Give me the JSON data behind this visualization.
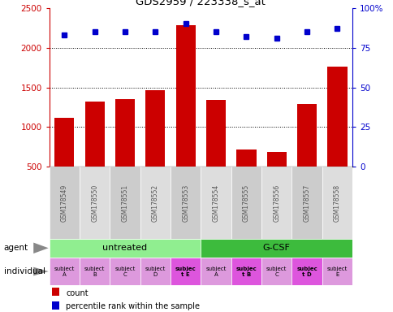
{
  "title": "GDS2959 / 223338_s_at",
  "samples": [
    "GSM178549",
    "GSM178550",
    "GSM178551",
    "GSM178552",
    "GSM178553",
    "GSM178554",
    "GSM178555",
    "GSM178556",
    "GSM178557",
    "GSM178558"
  ],
  "counts": [
    1120,
    1320,
    1350,
    1460,
    2280,
    1340,
    720,
    690,
    1290,
    1760
  ],
  "percentile_ranks": [
    83,
    85,
    85,
    85,
    90,
    85,
    82,
    81,
    85,
    87
  ],
  "bar_color": "#cc0000",
  "dot_color": "#0000cc",
  "ylim_left": [
    500,
    2500
  ],
  "yticks_left": [
    500,
    1000,
    1500,
    2000,
    2500
  ],
  "ylim_right": [
    0,
    100
  ],
  "yticks_right": [
    0,
    25,
    50,
    75,
    100
  ],
  "agent_groups": [
    {
      "label": "untreated",
      "start": 0,
      "end": 5,
      "color": "#90ee90"
    },
    {
      "label": "G-CSF",
      "start": 5,
      "end": 10,
      "color": "#3dbb3d"
    }
  ],
  "individuals": [
    {
      "label": "subject\nA",
      "idx": 0,
      "bold": false
    },
    {
      "label": "subject\nB",
      "idx": 1,
      "bold": false
    },
    {
      "label": "subject\nC",
      "idx": 2,
      "bold": false
    },
    {
      "label": "subject\nD",
      "idx": 3,
      "bold": false
    },
    {
      "label": "subjec\nt E",
      "idx": 4,
      "bold": true
    },
    {
      "label": "subject\nA",
      "idx": 5,
      "bold": false
    },
    {
      "label": "subjec\nt B",
      "idx": 6,
      "bold": true
    },
    {
      "label": "subject\nC",
      "idx": 7,
      "bold": false
    },
    {
      "label": "subjec\nt D",
      "idx": 8,
      "bold": true
    },
    {
      "label": "subject\nE",
      "idx": 9,
      "bold": false
    }
  ],
  "individual_highlight": [
    4,
    6,
    8
  ],
  "highlight_color": "#dd55dd",
  "normal_ind_color": "#dd99dd",
  "sample_label_color": "#555555",
  "sample_bg_even": "#cccccc",
  "sample_bg_odd": "#dddddd"
}
